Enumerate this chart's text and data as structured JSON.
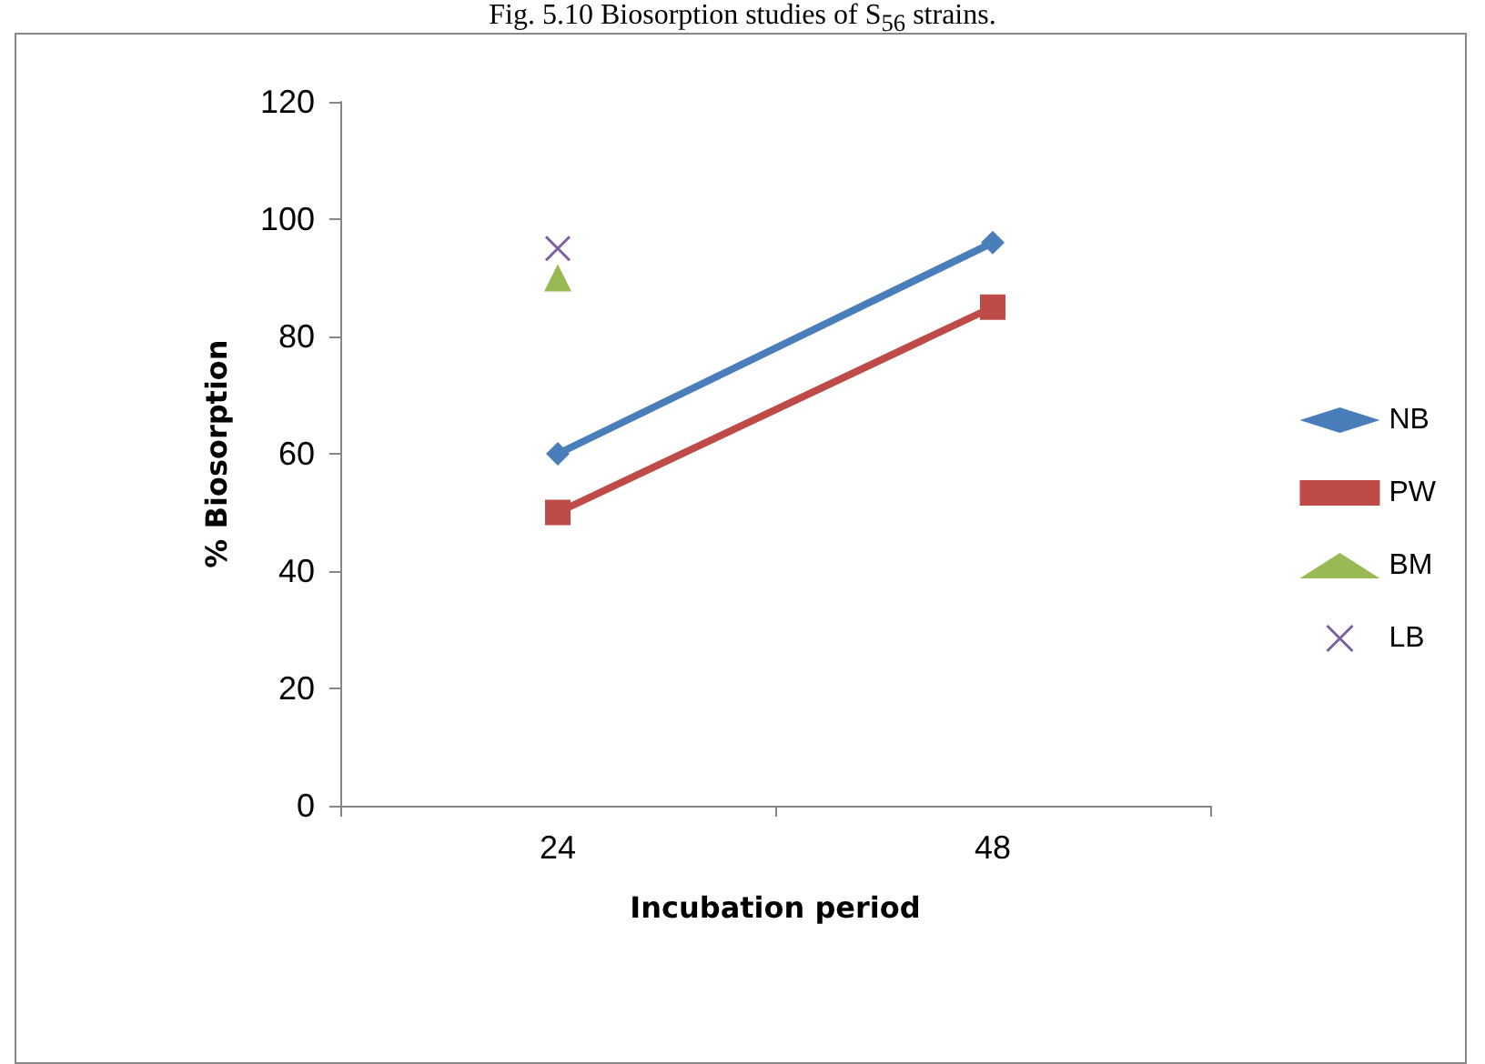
{
  "chart_data": {
    "type": "line",
    "title": "Fig. 5.10 Biosorption studies of S$_{56}$ strains.",
    "xlabel": "Incubation period",
    "ylabel": "% Biosorption",
    "categories": [
      "24",
      "48"
    ],
    "series": [
      {
        "name": "NB",
        "color": "#4a7ebb",
        "values": [
          60,
          96
        ],
        "marker": "diamond"
      },
      {
        "name": "PW",
        "color": "#be4b48",
        "values": [
          50,
          85
        ],
        "marker": "square"
      },
      {
        "name": "BM",
        "color": "#98b954",
        "values": [
          90,
          null
        ],
        "marker": "triangle"
      },
      {
        "name": "LB",
        "color": "#7d60a0",
        "values": [
          95,
          null
        ],
        "marker": "cross"
      }
    ],
    "ylim": [
      0,
      120
    ],
    "yticks": [
      0,
      20,
      40,
      60,
      80,
      100,
      120
    ],
    "grid": false,
    "legend": "right",
    "line_style": "solid"
  }
}
